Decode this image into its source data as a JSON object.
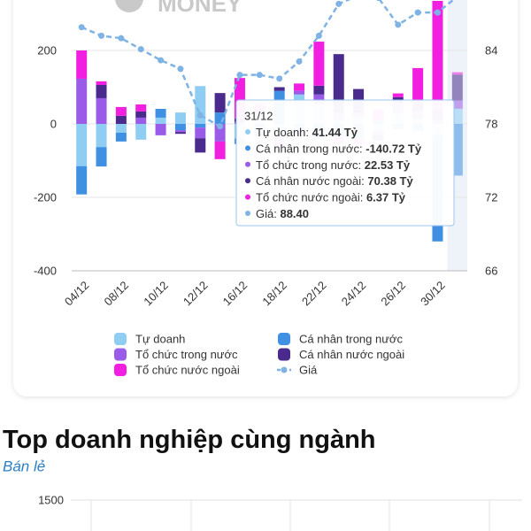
{
  "watermark": "MONEY",
  "chart_data": [
    {
      "type": "bar",
      "categories": [
        "04/12",
        null,
        "08/12",
        null,
        "10/12",
        null,
        "12/12",
        null,
        "16/12",
        null,
        "18/12",
        null,
        "22/12",
        null,
        "24/12",
        null,
        "26/12",
        null,
        "30/12",
        null
      ],
      "series": [
        {
          "name": "Tự doanh",
          "color": "#8fcdf2",
          "values": [
            -115,
            -63,
            -24,
            -43,
            17,
            31,
            103,
            0,
            -40,
            20,
            -30,
            80,
            55,
            10,
            20,
            -20,
            29,
            15,
            -30,
            41.44
          ]
        },
        {
          "name": "Cá nhân trong nước",
          "color": "#3f90e2",
          "values": [
            -77,
            -53,
            -24,
            0,
            24,
            -17,
            -10,
            31,
            -15,
            -25,
            90,
            -20,
            -40,
            -35,
            -40,
            10,
            -15,
            -20,
            -290,
            -140.72
          ]
        },
        {
          "name": "Tổ chức trong nước",
          "color": "#9a5be8",
          "values": [
            123,
            70,
            0,
            17,
            -31,
            -5,
            -29,
            -48,
            5,
            15,
            -20,
            10,
            25,
            20,
            10,
            -10,
            29,
            20,
            10,
            22.53
          ]
        },
        {
          "name": "Cá nhân nước ngoài",
          "color": "#4a2a8c",
          "values": [
            0,
            36,
            22,
            17,
            0,
            -5,
            -39,
            53,
            10,
            -10,
            10,
            -15,
            24,
            160,
            65,
            -15,
            15,
            22,
            31,
            70.38
          ]
        },
        {
          "name": "Tổ chức nước ngoài",
          "color": "#f21fe0",
          "values": [
            77,
            10,
            24,
            19,
            0,
            0,
            0,
            -48,
            110,
            20,
            -15,
            20,
            120,
            -20,
            -15,
            30,
            10,
            95,
            294,
            6.37
          ]
        },
        {
          "name": "Giá",
          "color": "#7fb3e6",
          "type": "line",
          "axis": "y2",
          "values": [
            85.9,
            85.2,
            85.0,
            84.1,
            83.2,
            82.5,
            78.7,
            77.8,
            82.0,
            82.0,
            81.7,
            83.1,
            85.2,
            87.8,
            88.5,
            88.3,
            86.1,
            87.1,
            87.1,
            88.4
          ]
        }
      ],
      "ylim": [
        -400,
        400
      ],
      "yticks": [
        -400,
        -200,
        0,
        200
      ],
      "y2lim": [
        66,
        90
      ],
      "y2ticks": [
        66,
        72,
        78,
        84
      ],
      "grid": true,
      "tooltip": {
        "title": "31/12",
        "items": [
          {
            "label": "Tự doanh:",
            "value_label": "41.44 Tỷ"
          },
          {
            "label": "Cá nhân trong nước:",
            "value_label": "-140.72 Tỷ"
          },
          {
            "label": "Tổ chức trong nước:",
            "value_label": "22.53 Tỷ"
          },
          {
            "label": "Cá nhân nước ngoài:",
            "value_label": "70.38 Tỷ"
          },
          {
            "label": "Tổ chức nước ngoài:",
            "value_label": "6.37 Tỷ"
          },
          {
            "label": "Giá:",
            "value_label": "88.40"
          }
        ]
      }
    },
    {
      "type": "bar",
      "title": "Top doanh nghiệp cùng ngành",
      "subtitle": "Bán lẻ",
      "ylim": [
        0,
        1500
      ],
      "yticks": [
        1500
      ],
      "grid": true
    }
  ]
}
